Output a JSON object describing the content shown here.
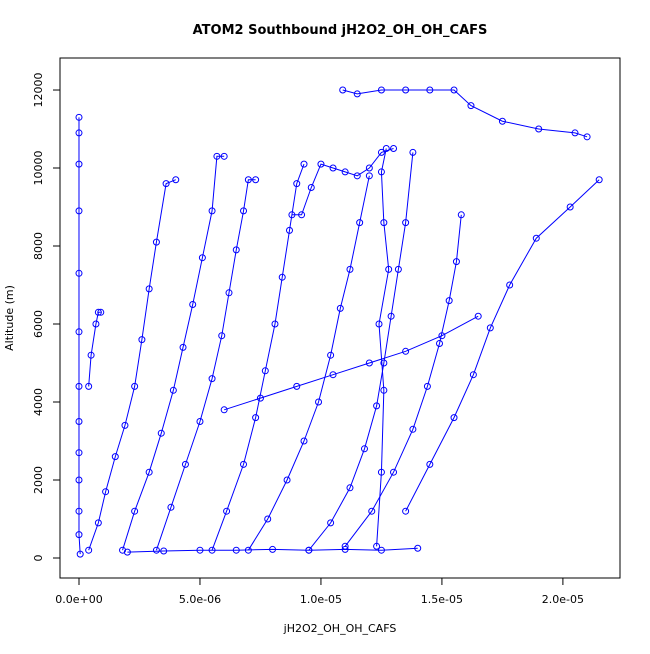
{
  "chart_data": {
    "type": "line",
    "title": "ATOM2 Southbound jH2O2_OH_OH_CAFS",
    "x_label": "jH2O2_OH_OH_CAFS",
    "y_label": "Altitude (m)",
    "color": "#0000ff",
    "xlim": [
      -7.85e-07,
      2.236e-05
    ],
    "ylim": [
      -513,
      12821
    ],
    "xticks": [
      {
        "value": 0,
        "label": "0.0e+00"
      },
      {
        "value": 5e-06,
        "label": "5.0e-06"
      },
      {
        "value": 1e-05,
        "label": "1.0e-05"
      },
      {
        "value": 1.5e-05,
        "label": "1.5e-05"
      },
      {
        "value": 2e-05,
        "label": "2.0e-05"
      }
    ],
    "yticks": [
      0,
      2000,
      4000,
      6000,
      8000,
      10000,
      12000
    ],
    "series": [
      {
        "x": [
          5e-08,
          0,
          0,
          0,
          0,
          0,
          0,
          0,
          0,
          0,
          0,
          0,
          0
        ],
        "values": [
          100,
          600,
          1200,
          2000,
          2700,
          3500,
          4400,
          5800,
          7300,
          8900,
          10100,
          10900,
          11300
        ]
      },
      {
        "x": [
          4e-07,
          8e-07,
          1.1e-06,
          1.5e-06,
          1.9e-06,
          2.3e-06,
          2.6e-06,
          2.9e-06,
          3.2e-06,
          3.6e-06,
          4e-06
        ],
        "values": [
          200,
          900,
          1700,
          2600,
          3400,
          4400,
          5600,
          6900,
          8100,
          9600,
          9700
        ]
      },
      {
        "x": [
          1.8e-06,
          2.3e-06,
          2.9e-06,
          3.4e-06,
          3.9e-06,
          4.3e-06,
          4.7e-06,
          5.1e-06,
          5.5e-06,
          5.7e-06,
          6e-06
        ],
        "values": [
          200,
          1200,
          2200,
          3200,
          4300,
          5400,
          6500,
          7700,
          8900,
          10300,
          10300
        ]
      },
      {
        "x": [
          3.2e-06,
          3.8e-06,
          4.4e-06,
          5e-06,
          5.5e-06,
          5.9e-06,
          6.2e-06,
          6.5e-06,
          6.8e-06,
          7e-06,
          7.3e-06
        ],
        "values": [
          200,
          1300,
          2400,
          3500,
          4600,
          5700,
          6800,
          7900,
          8900,
          9700,
          9700
        ]
      },
      {
        "x": [
          5.5e-06,
          6.1e-06,
          6.8e-06,
          7.3e-06,
          7.7e-06,
          8.1e-06,
          8.4e-06,
          8.7e-06,
          9e-06,
          9.3e-06
        ],
        "values": [
          200,
          1200,
          2400,
          3600,
          4800,
          6000,
          7200,
          8400,
          9600,
          10100
        ]
      },
      {
        "x": [
          7e-06,
          7.8e-06,
          8.6e-06,
          9.3e-06,
          9.9e-06,
          1.04e-05,
          1.08e-05,
          1.12e-05,
          1.16e-05,
          1.2e-05
        ],
        "values": [
          200,
          1000,
          2000,
          3000,
          4000,
          5200,
          6400,
          7400,
          8600,
          9800
        ]
      },
      {
        "x": [
          9.5e-06,
          1.04e-05,
          1.12e-05,
          1.18e-05,
          1.23e-05,
          1.26e-05,
          1.29e-05,
          1.32e-05,
          1.35e-05,
          1.38e-05
        ],
        "values": [
          200,
          900,
          1800,
          2800,
          3900,
          5000,
          6200,
          7400,
          8600,
          10400
        ]
      },
      {
        "x": [
          1.1e-05,
          1.21e-05,
          1.3e-05,
          1.38e-05,
          1.44e-05,
          1.49e-05,
          1.53e-05,
          1.56e-05,
          1.58e-05
        ],
        "values": [
          300,
          1200,
          2200,
          3300,
          4400,
          5500,
          6600,
          7600,
          8800
        ]
      },
      {
        "x": [
          1.35e-05,
          1.45e-05,
          1.55e-05,
          1.63e-05,
          1.7e-05,
          1.78e-05,
          1.89e-05,
          2.03e-05,
          2.15e-05
        ],
        "values": [
          1200,
          2400,
          3600,
          4700,
          5900,
          7000,
          8200,
          9000,
          9700
        ]
      },
      {
        "x": [
          1.09e-05,
          1.15e-05,
          1.25e-05,
          1.35e-05,
          1.45e-05,
          1.55e-05,
          1.62e-05,
          1.75e-05,
          1.9e-05,
          2.05e-05,
          2.1e-05
        ],
        "values": [
          12000,
          11900,
          12000,
          12000,
          12000,
          12000,
          11600,
          11200,
          11000,
          10900,
          10800
        ]
      },
      {
        "x": [
          8.8e-06,
          9.2e-06,
          9.6e-06,
          1e-05,
          1.05e-05,
          1.1e-05,
          1.15e-05,
          1.2e-05,
          1.25e-05,
          1.3e-05
        ],
        "values": [
          8800,
          8800,
          9500,
          10100,
          10000,
          9900,
          9800,
          10000,
          10400,
          10500
        ]
      },
      {
        "x": [
          4e-07,
          5e-07,
          7e-07,
          8e-07,
          9e-07
        ],
        "values": [
          4400,
          5200,
          6000,
          6300,
          6300
        ]
      },
      {
        "x": [
          1.23e-05,
          1.25e-05,
          1.26e-05,
          1.24e-05,
          1.28e-05,
          1.26e-05,
          1.25e-05,
          1.27e-05
        ],
        "values": [
          300,
          2200,
          4300,
          6000,
          7400,
          8600,
          9900,
          10500
        ]
      },
      {
        "x": [
          2e-06,
          3.5e-06,
          5e-06,
          6.5e-06,
          8e-06,
          9.5e-06,
          1.1e-05,
          1.25e-05,
          1.4e-05
        ],
        "values": [
          150,
          180,
          200,
          200,
          220,
          200,
          220,
          200,
          250
        ]
      },
      {
        "x": [
          6e-06,
          7.5e-06,
          9e-06,
          1.05e-05,
          1.2e-05,
          1.35e-05,
          1.5e-05,
          1.65e-05
        ],
        "values": [
          3800,
          4100,
          4400,
          4700,
          5000,
          5300,
          5700,
          6200
        ]
      }
    ]
  }
}
